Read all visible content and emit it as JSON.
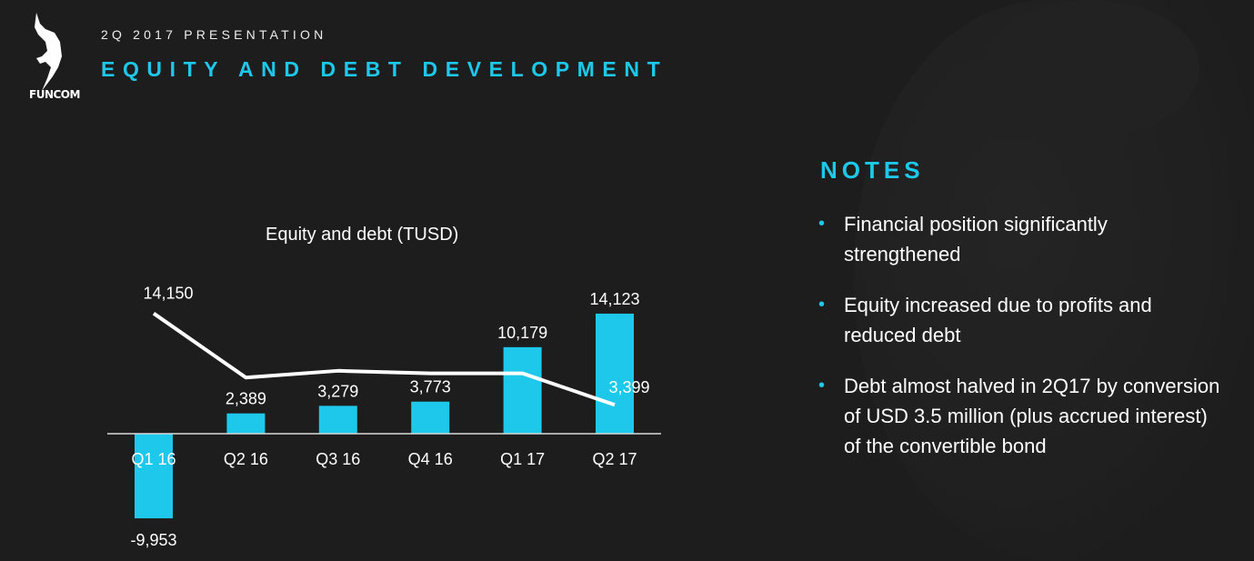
{
  "header": {
    "logo_text": "FUNCOM",
    "subtitle": "2Q 2017 PRESENTATION",
    "title": "EQUITY AND DEBT DEVELOPMENT"
  },
  "colors": {
    "accent": "#1ec8ea",
    "line": "#ffffff",
    "background": "#1d1d1d"
  },
  "chart_data": {
    "type": "bar",
    "title": "Equity and debt (TUSD)",
    "categories": [
      "Q1 16",
      "Q2 16",
      "Q3 16",
      "Q4 16",
      "Q1 17",
      "Q2 17"
    ],
    "series": [
      {
        "name": "Equity",
        "type": "bar",
        "values": [
          -9953,
          2389,
          3279,
          3773,
          10179,
          14123
        ],
        "labels": [
          "-9,953",
          "2,389",
          "3,279",
          "3,773",
          "10,179",
          "14,123"
        ]
      },
      {
        "name": "Debt",
        "type": "line",
        "values": [
          14150,
          6600,
          7400,
          7100,
          7100,
          3399
        ],
        "labels": [
          "14,150",
          null,
          null,
          null,
          null,
          "3,399"
        ]
      }
    ],
    "ylim": [
      -10000,
      15000
    ],
    "grid": false,
    "legend": "none"
  },
  "notes": {
    "title": "NOTES",
    "items": [
      "Financial position significantly strengthened",
      "Equity increased due to profits and reduced debt",
      "Debt almost halved in 2Q17 by conversion of USD 3.5 million (plus accrued interest) of the convertible bond"
    ]
  }
}
